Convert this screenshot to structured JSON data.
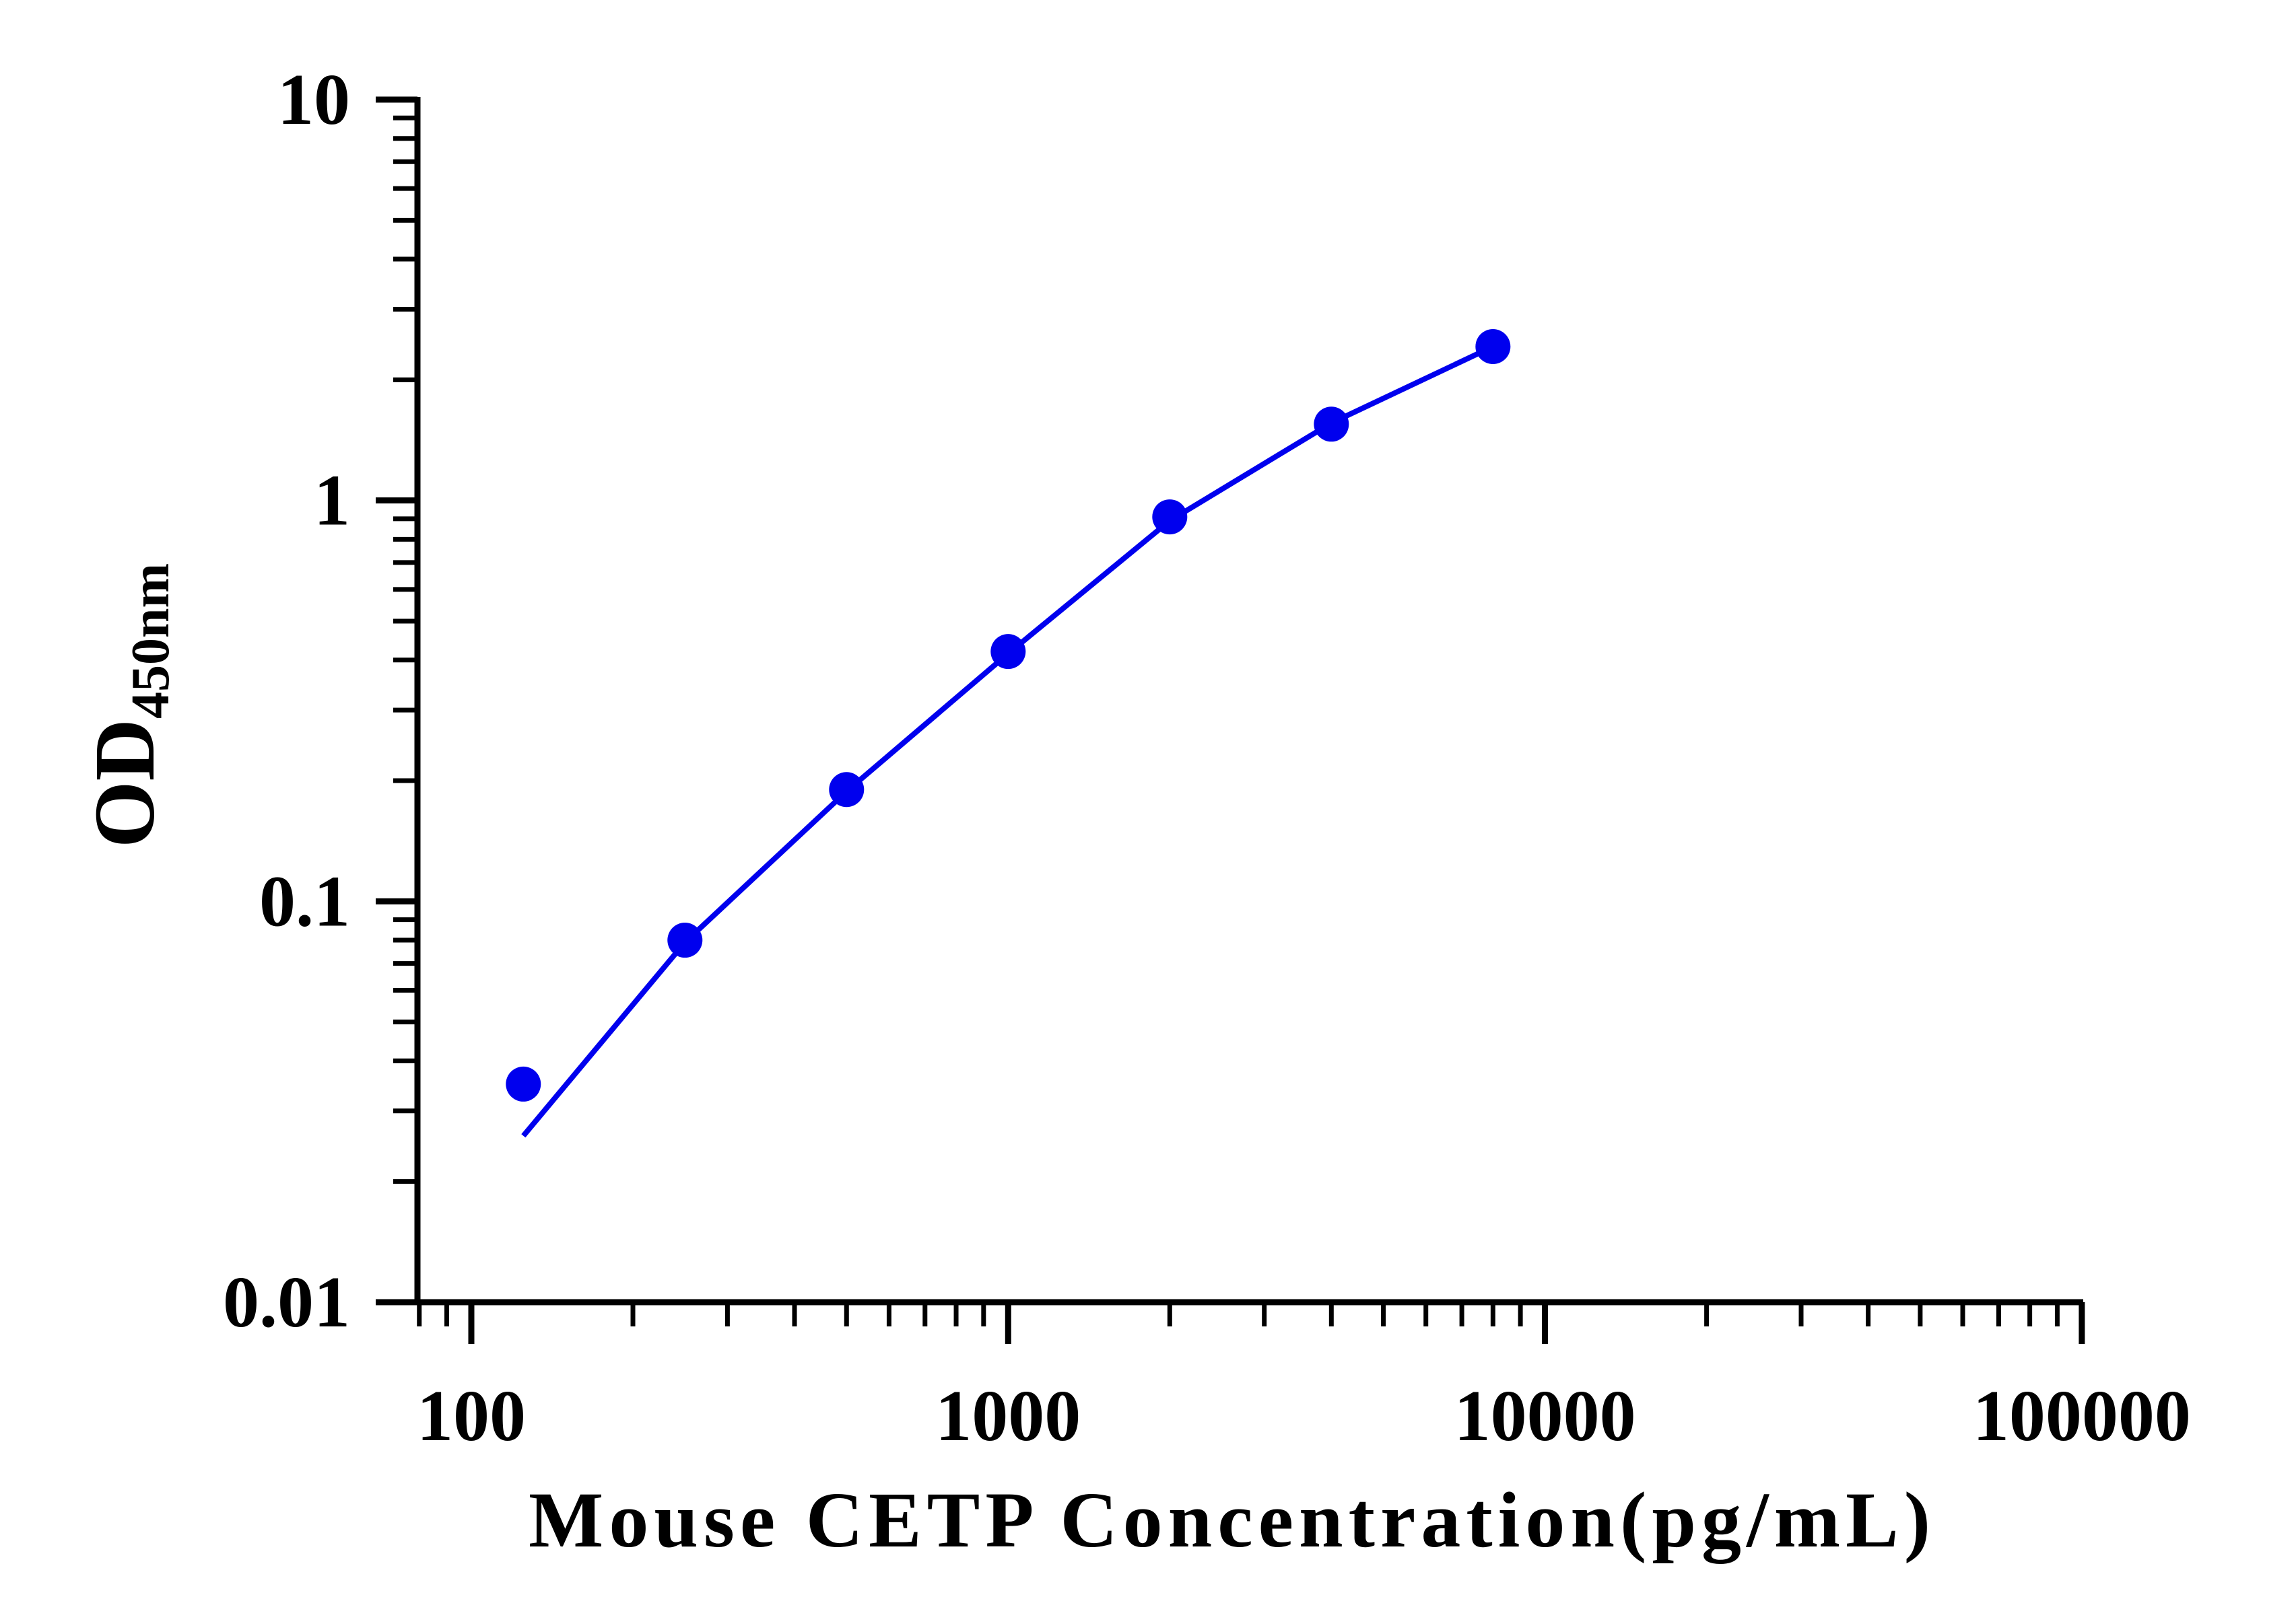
{
  "chart_data": {
    "type": "scatter",
    "title": "",
    "xlabel": "Mouse CETP Concentration(pg/mL)",
    "ylabel": {
      "main": "OD",
      "subscript": "450nm"
    },
    "x_scale": "log",
    "y_scale": "log",
    "xlim": [
      80,
      100000
    ],
    "ylim": [
      0.01,
      10
    ],
    "x_ticks": [
      "100",
      "1000",
      "10000",
      "100000"
    ],
    "y_ticks": [
      "10",
      "1",
      "0.1",
      "0.01"
    ],
    "grid": false,
    "legend": "none",
    "series": [
      {
        "color": "#0000ee",
        "points": [
          {
            "x": 125,
            "y": 0.035
          },
          {
            "x": 250,
            "y": 0.08
          },
          {
            "x": 500,
            "y": 0.19
          },
          {
            "x": 1000,
            "y": 0.42
          },
          {
            "x": 2000,
            "y": 0.91
          },
          {
            "x": 4000,
            "y": 1.55
          },
          {
            "x": 8000,
            "y": 2.42
          }
        ],
        "fit_line": {
          "x": [
            125,
            250,
            500,
            1000,
            2000,
            4000,
            8000
          ],
          "y": [
            0.026,
            0.079,
            0.188,
            0.415,
            0.89,
            1.56,
            2.42
          ]
        }
      }
    ]
  }
}
